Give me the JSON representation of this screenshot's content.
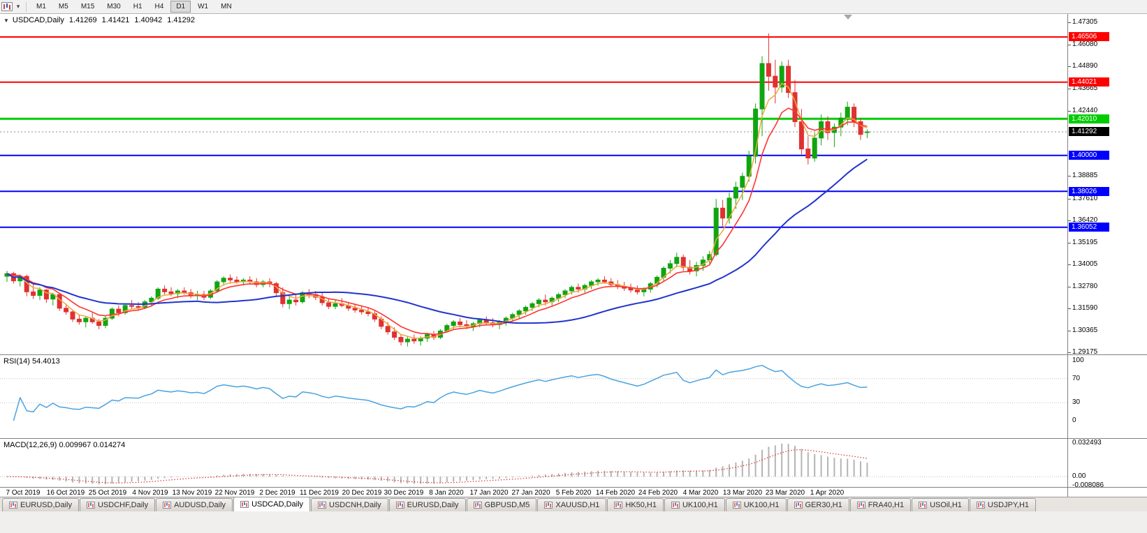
{
  "window_title": "USDCAD Daily chart - MetaTrader",
  "icons": {
    "collapse": "▼",
    "caret": "▾"
  },
  "colors": {
    "bull_candle": "#10A510",
    "bear_candle": "#E03131",
    "ma_fast_orange": "#EDA93C",
    "ma_medium_red": "#FF3333",
    "ma_slow_blue": "#2233CC",
    "resistance_red": "#FF0000",
    "pivot_green": "#00CC00",
    "support_blue": "#0000FF",
    "current_price_line": "#888888",
    "current_price_bg": "#000000",
    "rsi_line": "#4AA2DF",
    "macd_bar": "#B4B4B4",
    "macd_signal": "#E03131",
    "dotted_level": "#C0C0C0"
  },
  "toolbar": {
    "chart_icon": "candlestick-chart-icon",
    "timeframes": [
      "M1",
      "M5",
      "M15",
      "M30",
      "H1",
      "H4",
      "D1",
      "W1",
      "MN"
    ],
    "active_timeframe": "D1"
  },
  "chart_header": {
    "symbol": "USDCAD,Daily",
    "open": "1.41269",
    "high": "1.41421",
    "low": "1.40942",
    "close": "1.41292"
  },
  "current_price": {
    "label": "1.41292",
    "price": 1.41292
  },
  "price_axis": {
    "ticks": [
      "1.47305",
      "1.46080",
      "1.44890",
      "1.43665",
      "1.42440",
      "1.38885",
      "1.37610",
      "1.36420",
      "1.35195",
      "1.34005",
      "1.32780",
      "1.31590",
      "1.30365",
      "1.29175"
    ]
  },
  "date_axis": [
    {
      "label": "7 Oct 2019"
    },
    {
      "label": "16 Oct 2019"
    },
    {
      "label": "25 Oct 2019"
    },
    {
      "label": "4 Nov 2019"
    },
    {
      "label": "13 Nov 2019"
    },
    {
      "label": "22 Nov 2019"
    },
    {
      "label": "2 Dec 2019"
    },
    {
      "label": "11 Dec 2019"
    },
    {
      "label": "20 Dec 2019"
    },
    {
      "label": "30 Dec 2019"
    },
    {
      "label": "8 Jan 2020"
    },
    {
      "label": "17 Jan 2020"
    },
    {
      "label": "27 Jan 2020"
    },
    {
      "label": "5 Feb 2020"
    },
    {
      "label": "14 Feb 2020"
    },
    {
      "label": "24 Feb 2020"
    },
    {
      "label": "4 Mar 2020"
    },
    {
      "label": "13 Mar 2020"
    },
    {
      "label": "23 Mar 2020"
    },
    {
      "label": "1 Apr 2020"
    }
  ],
  "rsi_panel": {
    "label": "RSI(14) 54.4013",
    "period": 14,
    "value": "54.4013",
    "scale_labels": [
      "100",
      "70",
      "30",
      "0"
    ],
    "dotted_levels": [
      70,
      30
    ]
  },
  "macd_panel": {
    "label": "MACD(12,26,9) 0.009967 0.014274",
    "params": [
      12,
      26,
      9
    ],
    "macd_value": "0.009967",
    "signal_value": "0.014274",
    "scale_labels": [
      "0.032493",
      "0.00",
      "-0.008086"
    ],
    "scale_max": 0.032493,
    "scale_min": -0.008086
  },
  "tabs": [
    {
      "label": "EURUSD,Daily",
      "active": false
    },
    {
      "label": "USDCHF,Daily",
      "active": false
    },
    {
      "label": "AUDUSD,Daily",
      "active": false
    },
    {
      "label": "USDCAD,Daily",
      "active": true
    },
    {
      "label": "USDCNH,Daily",
      "active": false
    },
    {
      "label": "EURUSD,Daily",
      "active": false
    },
    {
      "label": "GBPUSD,M5",
      "active": false
    },
    {
      "label": "XAUUSD,H1",
      "active": false
    },
    {
      "label": "HK50,H1",
      "active": false
    },
    {
      "label": "UK100,H1",
      "active": false
    },
    {
      "label": "UK100,H1",
      "active": false
    },
    {
      "label": "GER30,H1",
      "active": false
    },
    {
      "label": "FRA40,H1",
      "active": false
    },
    {
      "label": "USOil,H1",
      "active": false
    },
    {
      "label": "USDJPY,H1",
      "active": false
    }
  ],
  "chart_data": {
    "type": "candlestick",
    "symbol": "USDCAD",
    "timeframe": "Daily",
    "title": "USDCAD,Daily 1.41269 1.41421 1.40942 1.41292",
    "price_range": [
      1.291,
      1.4777
    ],
    "hlines": [
      {
        "label": "1.46506",
        "price": 1.46506,
        "color": "#FF0000",
        "width": 2
      },
      {
        "label": "1.44021",
        "price": 1.44021,
        "color": "#FF0000",
        "width": 2
      },
      {
        "label": "1.42010",
        "price": 1.4201,
        "color": "#00CC00",
        "width": 3
      },
      {
        "label": "1.40000",
        "price": 1.4,
        "color": "#0000FF",
        "width": 2
      },
      {
        "label": "1.38026",
        "price": 1.38026,
        "color": "#0000FF",
        "width": 2
      },
      {
        "label": "1.36052",
        "price": 1.36052,
        "color": "#0000FF",
        "width": 2
      }
    ],
    "overlays": [
      {
        "name": "ma-fast",
        "type": "ema",
        "period": 4,
        "color": "#EDA93C",
        "stroke": 1.5
      },
      {
        "name": "ma-medium",
        "type": "ema",
        "period": 8,
        "color": "#FF3333",
        "stroke": 1.6
      },
      {
        "name": "ma-slow",
        "type": "sma",
        "period": 30,
        "color": "#2233CC",
        "stroke": 2
      }
    ],
    "ohlc": [
      [
        1.3335,
        1.3365,
        1.3305,
        1.335
      ],
      [
        1.335,
        1.336,
        1.3295,
        1.331
      ],
      [
        1.331,
        1.3345,
        1.328,
        1.3335
      ],
      [
        1.3335,
        1.3345,
        1.3225,
        1.325
      ],
      [
        1.325,
        1.3295,
        1.321,
        1.323
      ],
      [
        1.323,
        1.3275,
        1.3205,
        1.326
      ],
      [
        1.326,
        1.3265,
        1.319,
        1.321
      ],
      [
        1.321,
        1.3245,
        1.3175,
        1.3235
      ],
      [
        1.3235,
        1.324,
        1.3145,
        1.316
      ],
      [
        1.316,
        1.3185,
        1.3125,
        1.314
      ],
      [
        1.314,
        1.315,
        1.3085,
        1.31
      ],
      [
        1.31,
        1.3125,
        1.307,
        1.3085
      ],
      [
        1.3085,
        1.3115,
        1.3055,
        1.3105
      ],
      [
        1.3105,
        1.3135,
        1.3075,
        1.3085
      ],
      [
        1.3085,
        1.31,
        1.3045,
        1.3065
      ],
      [
        1.3065,
        1.3115,
        1.305,
        1.3105
      ],
      [
        1.3105,
        1.3165,
        1.3095,
        1.3155
      ],
      [
        1.3155,
        1.3175,
        1.3115,
        1.3135
      ],
      [
        1.3135,
        1.3185,
        1.3125,
        1.3175
      ],
      [
        1.3175,
        1.3205,
        1.3155,
        1.317
      ],
      [
        1.317,
        1.3195,
        1.3145,
        1.3165
      ],
      [
        1.3165,
        1.3205,
        1.3155,
        1.3195
      ],
      [
        1.3195,
        1.3225,
        1.3175,
        1.3215
      ],
      [
        1.3215,
        1.3275,
        1.3205,
        1.3265
      ],
      [
        1.3265,
        1.3285,
        1.3235,
        1.325
      ],
      [
        1.325,
        1.3275,
        1.3225,
        1.324
      ],
      [
        1.324,
        1.3265,
        1.3215,
        1.3255
      ],
      [
        1.3255,
        1.3275,
        1.3235,
        1.3245
      ],
      [
        1.3245,
        1.3265,
        1.3215,
        1.323
      ],
      [
        1.323,
        1.3255,
        1.3205,
        1.3235
      ],
      [
        1.3235,
        1.3255,
        1.3205,
        1.322
      ],
      [
        1.322,
        1.3265,
        1.321,
        1.3255
      ],
      [
        1.3255,
        1.3315,
        1.3245,
        1.3305
      ],
      [
        1.3305,
        1.3335,
        1.3285,
        1.3325
      ],
      [
        1.3325,
        1.3345,
        1.3295,
        1.3315
      ],
      [
        1.3315,
        1.3335,
        1.3295,
        1.3305
      ],
      [
        1.3305,
        1.3325,
        1.3285,
        1.3315
      ],
      [
        1.3315,
        1.3335,
        1.3295,
        1.3305
      ],
      [
        1.3305,
        1.3325,
        1.3275,
        1.329
      ],
      [
        1.329,
        1.3315,
        1.3275,
        1.3305
      ],
      [
        1.3305,
        1.3325,
        1.3275,
        1.3295
      ],
      [
        1.3295,
        1.3305,
        1.3225,
        1.3245
      ],
      [
        1.3245,
        1.3275,
        1.3165,
        1.3185
      ],
      [
        1.3185,
        1.3225,
        1.3155,
        1.3205
      ],
      [
        1.3205,
        1.3235,
        1.3175,
        1.3195
      ],
      [
        1.3195,
        1.3255,
        1.3185,
        1.3245
      ],
      [
        1.3245,
        1.3265,
        1.3215,
        1.3235
      ],
      [
        1.3235,
        1.3255,
        1.3205,
        1.322
      ],
      [
        1.322,
        1.3245,
        1.3175,
        1.319
      ],
      [
        1.319,
        1.3215,
        1.3155,
        1.317
      ],
      [
        1.317,
        1.3205,
        1.3155,
        1.3185
      ],
      [
        1.3185,
        1.3215,
        1.3165,
        1.3175
      ],
      [
        1.3175,
        1.3195,
        1.3145,
        1.316
      ],
      [
        1.316,
        1.3185,
        1.3135,
        1.315
      ],
      [
        1.315,
        1.3175,
        1.3125,
        1.314
      ],
      [
        1.314,
        1.3165,
        1.3115,
        1.313
      ],
      [
        1.313,
        1.3145,
        1.3085,
        1.31
      ],
      [
        1.31,
        1.3115,
        1.3045,
        1.306
      ],
      [
        1.306,
        1.3085,
        1.3015,
        1.303
      ],
      [
        1.303,
        1.3055,
        1.2985,
        1.3
      ],
      [
        1.3,
        1.3015,
        1.2955,
        1.2975
      ],
      [
        1.2975,
        1.3005,
        1.295,
        1.299
      ],
      [
        1.299,
        1.3015,
        1.2965,
        1.298
      ],
      [
        1.298,
        1.3005,
        1.2955,
        1.2995
      ],
      [
        1.2995,
        1.3025,
        1.2975,
        1.3015
      ],
      [
        1.3015,
        1.3035,
        1.2985,
        1.3
      ],
      [
        1.3,
        1.3045,
        1.299,
        1.3035
      ],
      [
        1.3035,
        1.3075,
        1.3025,
        1.3065
      ],
      [
        1.3065,
        1.3095,
        1.3045,
        1.3085
      ],
      [
        1.3085,
        1.3105,
        1.3055,
        1.307
      ],
      [
        1.307,
        1.3095,
        1.3045,
        1.306
      ],
      [
        1.306,
        1.3085,
        1.3035,
        1.3075
      ],
      [
        1.3075,
        1.3105,
        1.3055,
        1.3095
      ],
      [
        1.3095,
        1.3115,
        1.3065,
        1.308
      ],
      [
        1.308,
        1.3105,
        1.3055,
        1.307
      ],
      [
        1.307,
        1.3095,
        1.3045,
        1.3085
      ],
      [
        1.3085,
        1.3115,
        1.3065,
        1.3105
      ],
      [
        1.3105,
        1.3135,
        1.3085,
        1.3125
      ],
      [
        1.3125,
        1.3155,
        1.3105,
        1.3145
      ],
      [
        1.3145,
        1.3175,
        1.3125,
        1.3165
      ],
      [
        1.3165,
        1.3195,
        1.3145,
        1.3185
      ],
      [
        1.3185,
        1.3215,
        1.3165,
        1.3205
      ],
      [
        1.3205,
        1.3235,
        1.3175,
        1.3195
      ],
      [
        1.3195,
        1.3225,
        1.3175,
        1.3215
      ],
      [
        1.3215,
        1.3245,
        1.3195,
        1.3235
      ],
      [
        1.3235,
        1.3265,
        1.3215,
        1.3255
      ],
      [
        1.3255,
        1.3285,
        1.3235,
        1.3275
      ],
      [
        1.3275,
        1.3295,
        1.3245,
        1.3265
      ],
      [
        1.3265,
        1.3295,
        1.3245,
        1.3285
      ],
      [
        1.3285,
        1.3315,
        1.3265,
        1.3305
      ],
      [
        1.3305,
        1.3325,
        1.3285,
        1.3315
      ],
      [
        1.3315,
        1.3335,
        1.3295,
        1.3305
      ],
      [
        1.3305,
        1.3325,
        1.3275,
        1.329
      ],
      [
        1.329,
        1.3315,
        1.3265,
        1.328
      ],
      [
        1.328,
        1.3305,
        1.3255,
        1.327
      ],
      [
        1.327,
        1.3295,
        1.3245,
        1.326
      ],
      [
        1.326,
        1.3285,
        1.3235,
        1.325
      ],
      [
        1.325,
        1.3275,
        1.3225,
        1.3265
      ],
      [
        1.3265,
        1.3305,
        1.3245,
        1.3295
      ],
      [
        1.3295,
        1.334,
        1.3275,
        1.333
      ],
      [
        1.333,
        1.339,
        1.331,
        1.338
      ],
      [
        1.338,
        1.3425,
        1.335,
        1.3405
      ],
      [
        1.3405,
        1.3465,
        1.3385,
        1.344
      ],
      [
        1.344,
        1.3455,
        1.3365,
        1.3385
      ],
      [
        1.3385,
        1.3425,
        1.3345,
        1.3365
      ],
      [
        1.3365,
        1.3415,
        1.3335,
        1.3395
      ],
      [
        1.3395,
        1.3445,
        1.3365,
        1.3425
      ],
      [
        1.3425,
        1.3475,
        1.3405,
        1.3455
      ],
      [
        1.3455,
        1.376,
        1.3445,
        1.371
      ],
      [
        1.371,
        1.3755,
        1.3605,
        1.3655
      ],
      [
        1.3655,
        1.3795,
        1.3625,
        1.3765
      ],
      [
        1.3765,
        1.3855,
        1.3705,
        1.3825
      ],
      [
        1.3825,
        1.3905,
        1.3755,
        1.3885
      ],
      [
        1.3885,
        1.4025,
        1.3855,
        1.3995
      ],
      [
        1.3995,
        1.4285,
        1.3955,
        1.4255
      ],
      [
        1.4255,
        1.4545,
        1.4105,
        1.4505
      ],
      [
        1.4505,
        1.467,
        1.4355,
        1.4435
      ],
      [
        1.4435,
        1.4525,
        1.4285,
        1.4375
      ],
      [
        1.4375,
        1.4515,
        1.4345,
        1.449
      ],
      [
        1.449,
        1.4525,
        1.4315,
        1.4345
      ],
      [
        1.4345,
        1.4415,
        1.4155,
        1.4185
      ],
      [
        1.4185,
        1.4255,
        1.4005,
        1.4035
      ],
      [
        1.4035,
        1.4105,
        1.395,
        1.3985
      ],
      [
        1.3985,
        1.4125,
        1.3965,
        1.4095
      ],
      [
        1.4095,
        1.4225,
        1.4055,
        1.4185
      ],
      [
        1.4185,
        1.4215,
        1.4085,
        1.4125
      ],
      [
        1.4125,
        1.4175,
        1.4045,
        1.4155
      ],
      [
        1.4155,
        1.4235,
        1.4105,
        1.4205
      ],
      [
        1.4205,
        1.4295,
        1.4165,
        1.4265
      ],
      [
        1.4265,
        1.4285,
        1.4155,
        1.4185
      ],
      [
        1.4185,
        1.4205,
        1.4085,
        1.4115
      ],
      [
        1.41269,
        1.41421,
        1.40942,
        1.41292
      ]
    ]
  }
}
